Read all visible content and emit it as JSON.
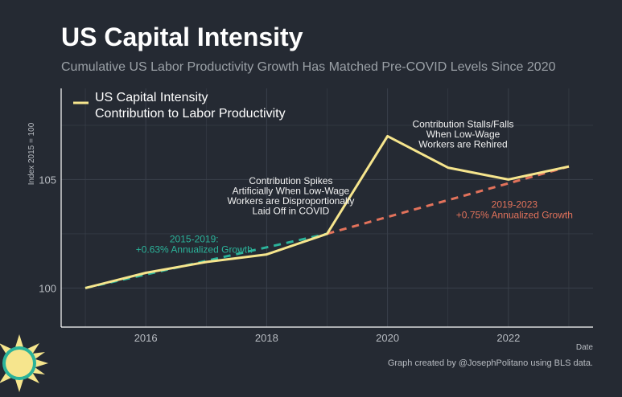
{
  "title": "US Capital Intensity",
  "subtitle": "Cumulative US Labor Productivity Growth Has Matched Pre-COVID Levels Since 2020",
  "footer": "Graph created by @JosephPolitano using BLS data.",
  "colors": {
    "background": "#252a33",
    "series": "#f6e58d",
    "trend_pre": "#2bb39a",
    "trend_post": "#e2725b",
    "grid": "#3a404b",
    "axis": "#ffffff",
    "tick": "#b8bcc2",
    "annotation": "#f0f0f0"
  },
  "chart_data": {
    "type": "line",
    "xlabel": "Date",
    "ylabel": "Index 2015 = 100",
    "xlim": [
      2014.6,
      2023.4
    ],
    "ylim": [
      98.2,
      109.2
    ],
    "xticks": [
      2016,
      2018,
      2020,
      2022
    ],
    "xtick_labels": [
      "2016",
      "2018",
      "2020",
      "2022"
    ],
    "yticks": [
      100,
      105
    ],
    "ytick_labels": [
      "100",
      "105"
    ],
    "legend": {
      "position": "top-left",
      "entries": [
        "US Capital Intensity Contribution to Labor Productivity"
      ],
      "lines": [
        "US Capital Intensity",
        "Contribution to Labor Productivity"
      ]
    },
    "series": [
      {
        "name": "US Capital Intensity Contribution to Labor Productivity",
        "x": [
          2015,
          2016,
          2017,
          2018,
          2019,
          2020,
          2021,
          2022,
          2023
        ],
        "y": [
          100.0,
          100.7,
          101.2,
          101.55,
          102.5,
          107.0,
          105.55,
          105.0,
          105.6
        ]
      }
    ],
    "trendlines": [
      {
        "name": "2015-2019 trend",
        "x": [
          2015,
          2019
        ],
        "y": [
          100.0,
          102.5
        ],
        "style": "dashed",
        "label_lines": [
          "2015-2019:",
          "+0.63% Annualized Growth"
        ]
      },
      {
        "name": "2019-2023 trend",
        "x": [
          2019,
          2023
        ],
        "y": [
          102.5,
          105.6
        ],
        "style": "dashed",
        "label_lines": [
          "2019-2023",
          "+0.75% Annualized Growth"
        ]
      }
    ],
    "annotations": [
      {
        "anchor_x": 2018.4,
        "anchor_y": 104.8,
        "lines": [
          "Contribution Spikes",
          "Artificially When Low-Wage",
          "Workers are Disproportionally",
          "Laid Off in COVID"
        ]
      },
      {
        "anchor_x": 2021.25,
        "anchor_y": 107.4,
        "lines": [
          "Contribution Stalls/Falls",
          "When Low-Wage",
          "Workers are Rehired"
        ]
      }
    ]
  }
}
